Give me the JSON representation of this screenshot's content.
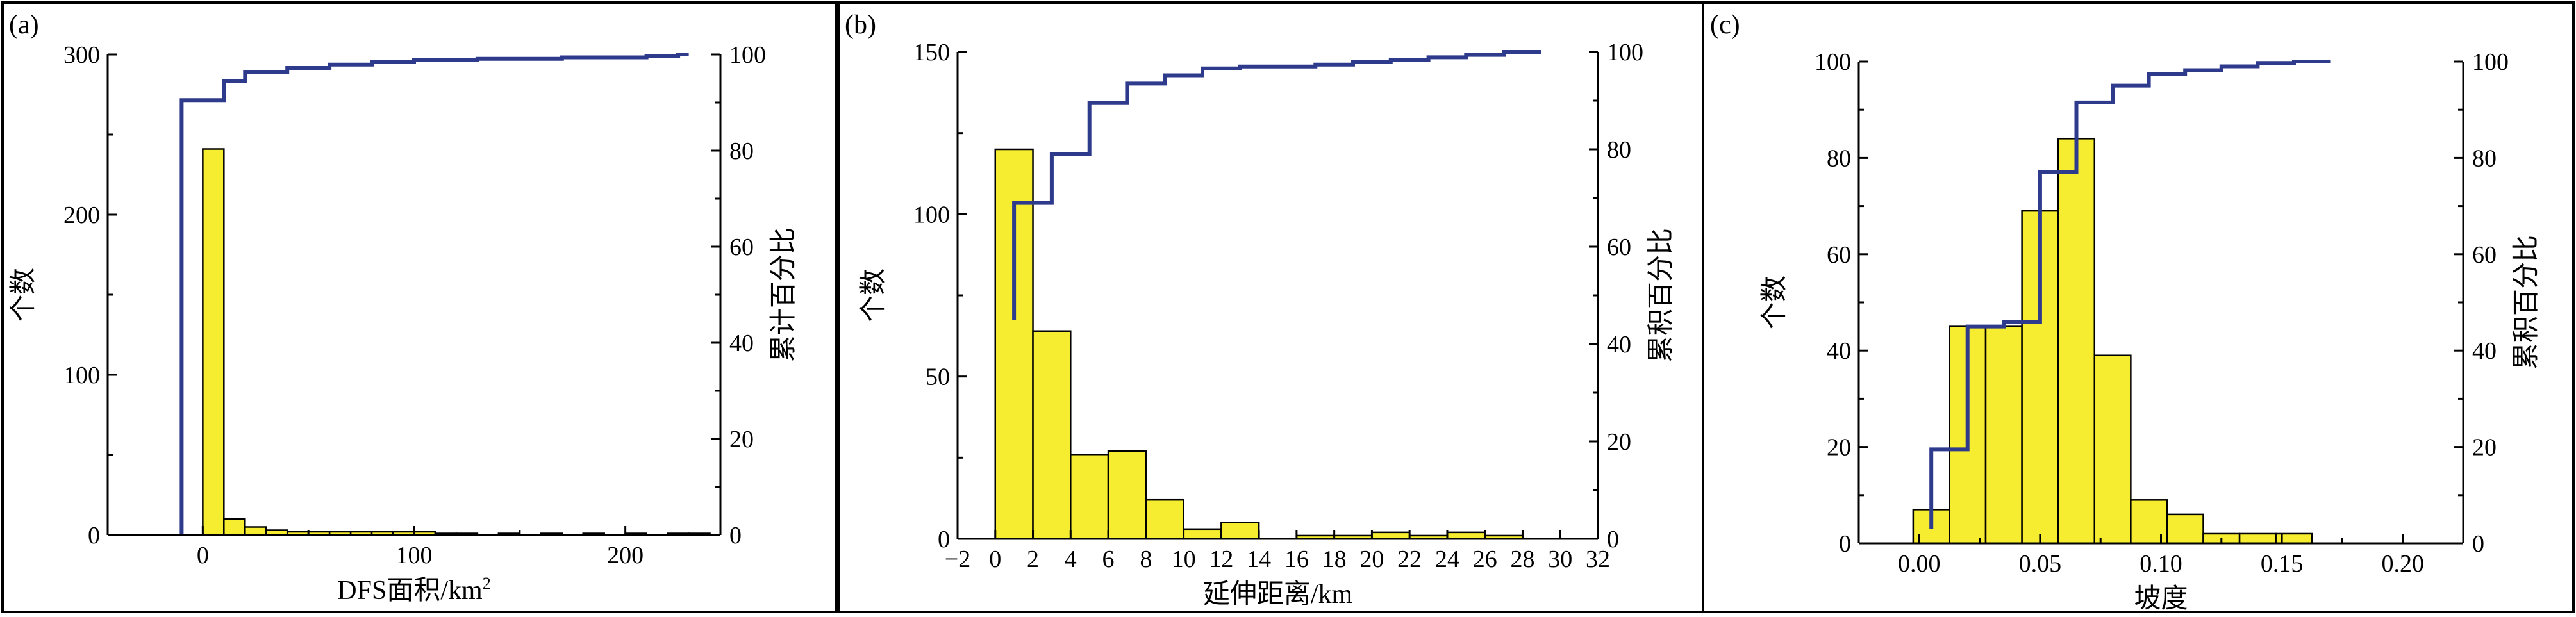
{
  "chart_data": [
    {
      "type": "bar",
      "panel_label": "(a)",
      "xlabel": "DFS面积/km",
      "xlabel_sup": "2",
      "ylabel": "个数",
      "y2label": "累计百分比",
      "xlim": [
        -45,
        245
      ],
      "ylim": [
        0,
        300
      ],
      "y2lim": [
        0,
        100
      ],
      "xticks": [
        0,
        100,
        200
      ],
      "yticks": [
        0,
        100,
        200,
        300
      ],
      "y2ticks": [
        0,
        20,
        40,
        60,
        80,
        100
      ],
      "bins": [
        {
          "x0": 0,
          "x1": 10,
          "value": 241
        },
        {
          "x0": 10,
          "x1": 20,
          "value": 10
        },
        {
          "x0": 20,
          "x1": 30,
          "value": 5
        },
        {
          "x0": 30,
          "x1": 40,
          "value": 3
        },
        {
          "x0": 40,
          "x1": 50,
          "value": 2
        },
        {
          "x0": 50,
          "x1": 60,
          "value": 2
        },
        {
          "x0": 60,
          "x1": 70,
          "value": 2
        },
        {
          "x0": 70,
          "x1": 80,
          "value": 2
        },
        {
          "x0": 80,
          "x1": 90,
          "value": 2
        },
        {
          "x0": 90,
          "x1": 100,
          "value": 2
        },
        {
          "x0": 100,
          "x1": 110,
          "value": 2
        },
        {
          "x0": 110,
          "x1": 120,
          "value": 1
        },
        {
          "x0": 120,
          "x1": 130,
          "value": 1
        },
        {
          "x0": 140,
          "x1": 150,
          "value": 1
        },
        {
          "x0": 160,
          "x1": 170,
          "value": 1
        },
        {
          "x0": 180,
          "x1": 190,
          "value": 1
        },
        {
          "x0": 200,
          "x1": 210,
          "value": 1
        },
        {
          "x0": 220,
          "x1": 230,
          "value": 1
        },
        {
          "x0": 230,
          "x1": 240,
          "value": 1
        }
      ],
      "cumulative": {
        "x": [
          -10,
          -10,
          0,
          0,
          10,
          10,
          20,
          20,
          40,
          40,
          60,
          60,
          80,
          80,
          100,
          100,
          130,
          130,
          170,
          170,
          210,
          210,
          225,
          225,
          230
        ],
        "y": [
          0,
          90.5,
          90.5,
          90.5,
          90.5,
          94.5,
          94.5,
          96.3,
          96.3,
          97.2,
          97.2,
          97.9,
          97.9,
          98.4,
          98.4,
          98.8,
          98.8,
          99.1,
          99.1,
          99.4,
          99.4,
          99.7,
          99.7,
          100,
          100
        ]
      }
    },
    {
      "type": "bar",
      "panel_label": "(b)",
      "xlabel": "延伸距离/km",
      "ylabel": "个数",
      "y2label": "累积百分比",
      "xlim": [
        -2,
        32
      ],
      "ylim": [
        0,
        150
      ],
      "y2lim": [
        0,
        100
      ],
      "xticks": [
        -2,
        0,
        2,
        4,
        6,
        8,
        10,
        12,
        14,
        16,
        18,
        20,
        22,
        24,
        26,
        28,
        30,
        32
      ],
      "yticks": [
        0,
        50,
        100,
        150
      ],
      "y2ticks": [
        0,
        20,
        40,
        60,
        80,
        100
      ],
      "bins": [
        {
          "x0": 0,
          "x1": 2,
          "value": 120
        },
        {
          "x0": 2,
          "x1": 4,
          "value": 64
        },
        {
          "x0": 4,
          "x1": 6,
          "value": 26
        },
        {
          "x0": 6,
          "x1": 8,
          "value": 27
        },
        {
          "x0": 8,
          "x1": 10,
          "value": 12
        },
        {
          "x0": 10,
          "x1": 12,
          "value": 3
        },
        {
          "x0": 12,
          "x1": 14,
          "value": 5
        },
        {
          "x0": 16,
          "x1": 18,
          "value": 1
        },
        {
          "x0": 18,
          "x1": 20,
          "value": 1
        },
        {
          "x0": 20,
          "x1": 22,
          "value": 2
        },
        {
          "x0": 22,
          "x1": 24,
          "value": 1
        },
        {
          "x0": 24,
          "x1": 26,
          "value": 2
        },
        {
          "x0": 26,
          "x1": 28,
          "value": 1
        }
      ],
      "cumulative": {
        "x": [
          1,
          1,
          3,
          3,
          5,
          5,
          7,
          7,
          9,
          9,
          11,
          11,
          13,
          13,
          17,
          17,
          19,
          19,
          21,
          21,
          23,
          23,
          25,
          25,
          27,
          27,
          29
        ],
        "y": [
          45,
          69,
          69,
          79,
          79,
          89.5,
          89.5,
          93.5,
          93.5,
          95.2,
          95.2,
          96.6,
          96.6,
          97,
          97,
          97.4,
          97.4,
          97.9,
          97.9,
          98.4,
          98.4,
          98.9,
          98.9,
          99.4,
          99.4,
          100,
          100
        ]
      }
    },
    {
      "type": "bar",
      "panel_label": "(c)",
      "xlabel": "坡度",
      "ylabel": "个数",
      "y2label": "累积百分比",
      "xlim": [
        -0.025,
        0.225
      ],
      "ylim": [
        0,
        100
      ],
      "y2lim": [
        0,
        100
      ],
      "xticks": [
        0.0,
        0.05,
        0.1,
        0.15,
        0.2
      ],
      "xticklabels": [
        "0.00",
        "0.05",
        "0.10",
        "0.15",
        "0.20"
      ],
      "yticks": [
        0,
        20,
        40,
        60,
        80,
        100
      ],
      "y2ticks": [
        0,
        20,
        40,
        60,
        80,
        100
      ],
      "bins": [
        {
          "x0": -0.0025,
          "x1": 0.0125,
          "value": 7
        },
        {
          "x0": 0.0125,
          "x1": 0.0275,
          "value": 45
        },
        {
          "x0": 0.0275,
          "x1": 0.0425,
          "value": 45
        },
        {
          "x0": 0.0425,
          "x1": 0.0575,
          "value": 69
        },
        {
          "x0": 0.0575,
          "x1": 0.0725,
          "value": 84
        },
        {
          "x0": 0.0725,
          "x1": 0.0875,
          "value": 39
        },
        {
          "x0": 0.0875,
          "x1": 0.1025,
          "value": 9
        },
        {
          "x0": 0.1025,
          "x1": 0.1175,
          "value": 6
        },
        {
          "x0": 0.1175,
          "x1": 0.1325,
          "value": 2
        },
        {
          "x0": 0.1325,
          "x1": 0.1475,
          "value": 2
        },
        {
          "x0": 0.1475,
          "x1": 0.1625,
          "value": 2
        }
      ],
      "cumulative": {
        "x": [
          0.005,
          0.005,
          0.02,
          0.02,
          0.035,
          0.035,
          0.05,
          0.05,
          0.065,
          0.065,
          0.08,
          0.08,
          0.095,
          0.095,
          0.11,
          0.11,
          0.125,
          0.125,
          0.14,
          0.14,
          0.155,
          0.155,
          0.17
        ],
        "y": [
          3,
          19.5,
          19.5,
          45,
          45,
          46,
          46,
          77,
          77,
          91.5,
          91.5,
          95,
          95,
          97.4,
          97.4,
          98.2,
          98.2,
          99,
          99,
          99.7,
          99.7,
          100,
          100
        ]
      }
    }
  ]
}
